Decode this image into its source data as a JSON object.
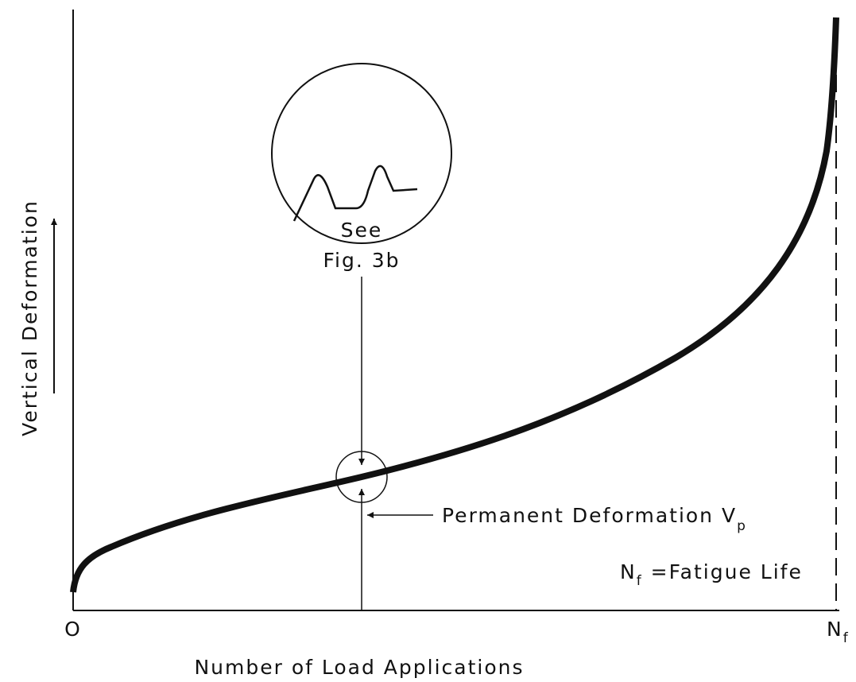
{
  "axes": {
    "y_label": "Vertical Deformation",
    "x_label": "Number of Load Applications",
    "origin": "O",
    "end": {
      "main": "N",
      "sub": "f"
    }
  },
  "callout": {
    "line1": "See",
    "line2": "Fig. 3b"
  },
  "annotation": {
    "main": "Permanent Deformation V",
    "sub": "p"
  },
  "legend": {
    "main": "N",
    "sub": "f",
    "rest": " =Fatigue Life"
  }
}
